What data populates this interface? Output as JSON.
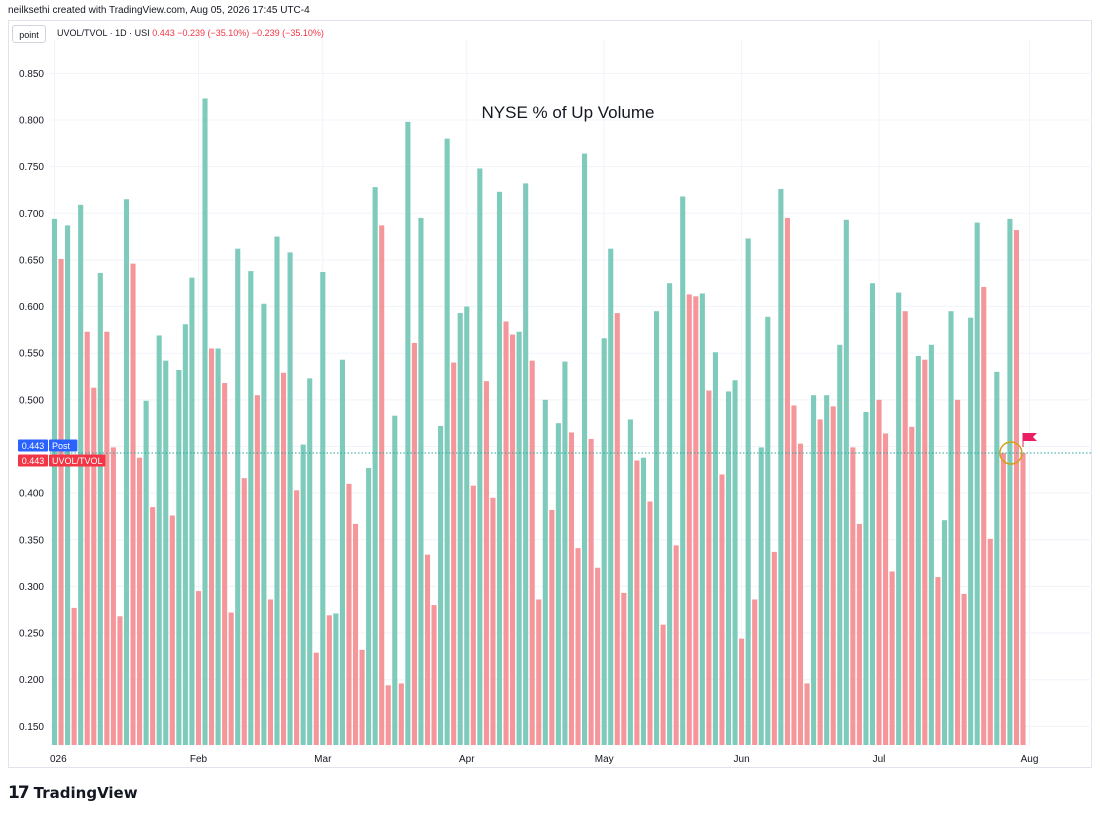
{
  "header": {
    "credit": "neilksethi created with TradingView.com, Aug 05, 2026 17:45 UTC-4"
  },
  "toolbar": {
    "point_label": "point"
  },
  "legend": {
    "symbol": "UVOL/TVOL · 1D · USI",
    "value": "0.443",
    "change1": "−0.239 (−35.10%)",
    "change2": "−0.239 (−35.10%)"
  },
  "footer": {
    "brand": "TradingView"
  },
  "colors": {
    "up": "#7ecbbc",
    "down": "#f5969b",
    "post_badge": "#2962ff",
    "price_badge": "#f23645",
    "ref_line": "#26a69a",
    "grid": "#f0f3fa",
    "highlight_circle": "#d4a017",
    "flag": "#e91e63"
  },
  "icons": [
    "tradingview-logo-icon",
    "flag-icon"
  ],
  "chart_data": {
    "type": "bar",
    "title": "NYSE % of Up Volume",
    "ylim": [
      0.13,
      0.875
    ],
    "y_ticks": [
      "0.850",
      "0.800",
      "0.750",
      "0.700",
      "0.650",
      "0.600",
      "0.550",
      "0.500",
      "0.450",
      "0.400",
      "0.350",
      "0.300",
      "0.250",
      "0.200",
      "0.150"
    ],
    "x_ticks": [
      {
        "label": "026",
        "index": 0
      },
      {
        "label": "Feb",
        "index": 22
      },
      {
        "label": "Mar",
        "index": 41
      },
      {
        "label": "Apr",
        "index": 63
      },
      {
        "label": "May",
        "index": 84
      },
      {
        "label": "Jun",
        "index": 105
      },
      {
        "label": "Jul",
        "index": 126
      },
      {
        "label": "Aug",
        "index": 149
      }
    ],
    "current_value": 0.443,
    "badges": [
      {
        "value": "0.443",
        "label": "Post"
      },
      {
        "value": "0.443",
        "label": "UVOL/TVOL"
      }
    ],
    "grid": true,
    "series": [
      {
        "values": [
          0.694,
          0.651,
          0.687,
          0.277,
          0.709,
          0.573,
          0.513,
          0.636,
          0.573,
          0.449,
          0.268,
          0.715,
          0.646,
          0.438,
          0.499,
          0.385,
          0.569,
          0.542,
          0.376,
          0.532,
          0.581,
          0.631,
          0.295,
          0.823,
          0.555,
          0.555,
          0.518,
          0.272,
          0.662,
          0.416,
          0.638,
          0.505,
          0.603,
          0.286,
          0.675,
          0.529,
          0.658,
          0.403,
          0.452,
          0.523,
          0.229,
          0.637,
          0.269,
          0.271,
          0.543,
          0.41,
          0.367,
          0.232,
          0.427,
          0.728,
          0.687,
          0.194,
          0.483,
          0.196,
          0.798,
          0.561,
          0.695,
          0.334,
          0.28,
          0.472,
          0.78,
          0.54,
          0.593,
          0.6,
          0.408,
          0.748,
          0.52,
          0.395,
          0.723,
          0.584,
          0.57,
          0.573,
          0.732,
          0.542,
          0.286,
          0.5,
          0.382,
          0.475,
          0.541,
          0.465,
          0.341,
          0.764,
          0.458,
          0.32,
          0.566,
          0.662,
          0.593,
          0.293,
          0.479,
          0.435,
          0.438,
          0.391,
          0.595,
          0.259,
          0.625,
          0.344,
          0.718,
          0.613,
          0.611,
          0.614,
          0.51,
          0.551,
          0.42,
          0.509,
          0.521,
          0.244,
          0.673,
          0.286,
          0.449,
          0.589,
          0.337,
          0.726,
          0.695,
          0.494,
          0.453,
          0.196,
          0.505,
          0.479,
          0.505,
          0.493,
          0.559,
          0.693,
          0.449,
          0.367,
          0.487,
          0.625,
          0.5,
          0.464,
          0.316,
          0.615,
          0.595,
          0.471,
          0.547,
          0.543,
          0.559,
          0.31,
          0.371,
          0.595,
          0.5,
          0.292,
          0.588,
          0.69,
          0.621,
          0.351,
          0.53,
          0.443,
          0.694,
          0.682,
          0.443
        ],
        "directions": [
          "u",
          "d",
          "u",
          "d",
          "u",
          "d",
          "d",
          "u",
          "d",
          "d",
          "d",
          "u",
          "d",
          "d",
          "u",
          "d",
          "u",
          "u",
          "d",
          "u",
          "u",
          "u",
          "d",
          "u",
          "d",
          "u",
          "d",
          "d",
          "u",
          "d",
          "u",
          "d",
          "u",
          "d",
          "u",
          "d",
          "u",
          "d",
          "u",
          "u",
          "d",
          "u",
          "d",
          "u",
          "u",
          "d",
          "d",
          "d",
          "u",
          "u",
          "d",
          "d",
          "u",
          "d",
          "u",
          "d",
          "u",
          "d",
          "d",
          "u",
          "u",
          "d",
          "u",
          "u",
          "d",
          "u",
          "d",
          "d",
          "u",
          "d",
          "d",
          "u",
          "u",
          "d",
          "d",
          "u",
          "d",
          "u",
          "u",
          "d",
          "d",
          "u",
          "d",
          "d",
          "u",
          "u",
          "d",
          "d",
          "u",
          "d",
          "u",
          "d",
          "u",
          "d",
          "u",
          "d",
          "u",
          "d",
          "d",
          "u",
          "d",
          "u",
          "d",
          "u",
          "u",
          "d",
          "u",
          "d",
          "u",
          "u",
          "d",
          "u",
          "d",
          "d",
          "d",
          "d",
          "u",
          "d",
          "u",
          "d",
          "u",
          "u",
          "d",
          "d",
          "u",
          "u",
          "d",
          "d",
          "d",
          "u",
          "d",
          "d",
          "u",
          "d",
          "u",
          "d",
          "u",
          "u",
          "d",
          "d",
          "u",
          "u",
          "d",
          "d",
          "u",
          "d",
          "u",
          "d",
          "d"
        ]
      }
    ]
  }
}
